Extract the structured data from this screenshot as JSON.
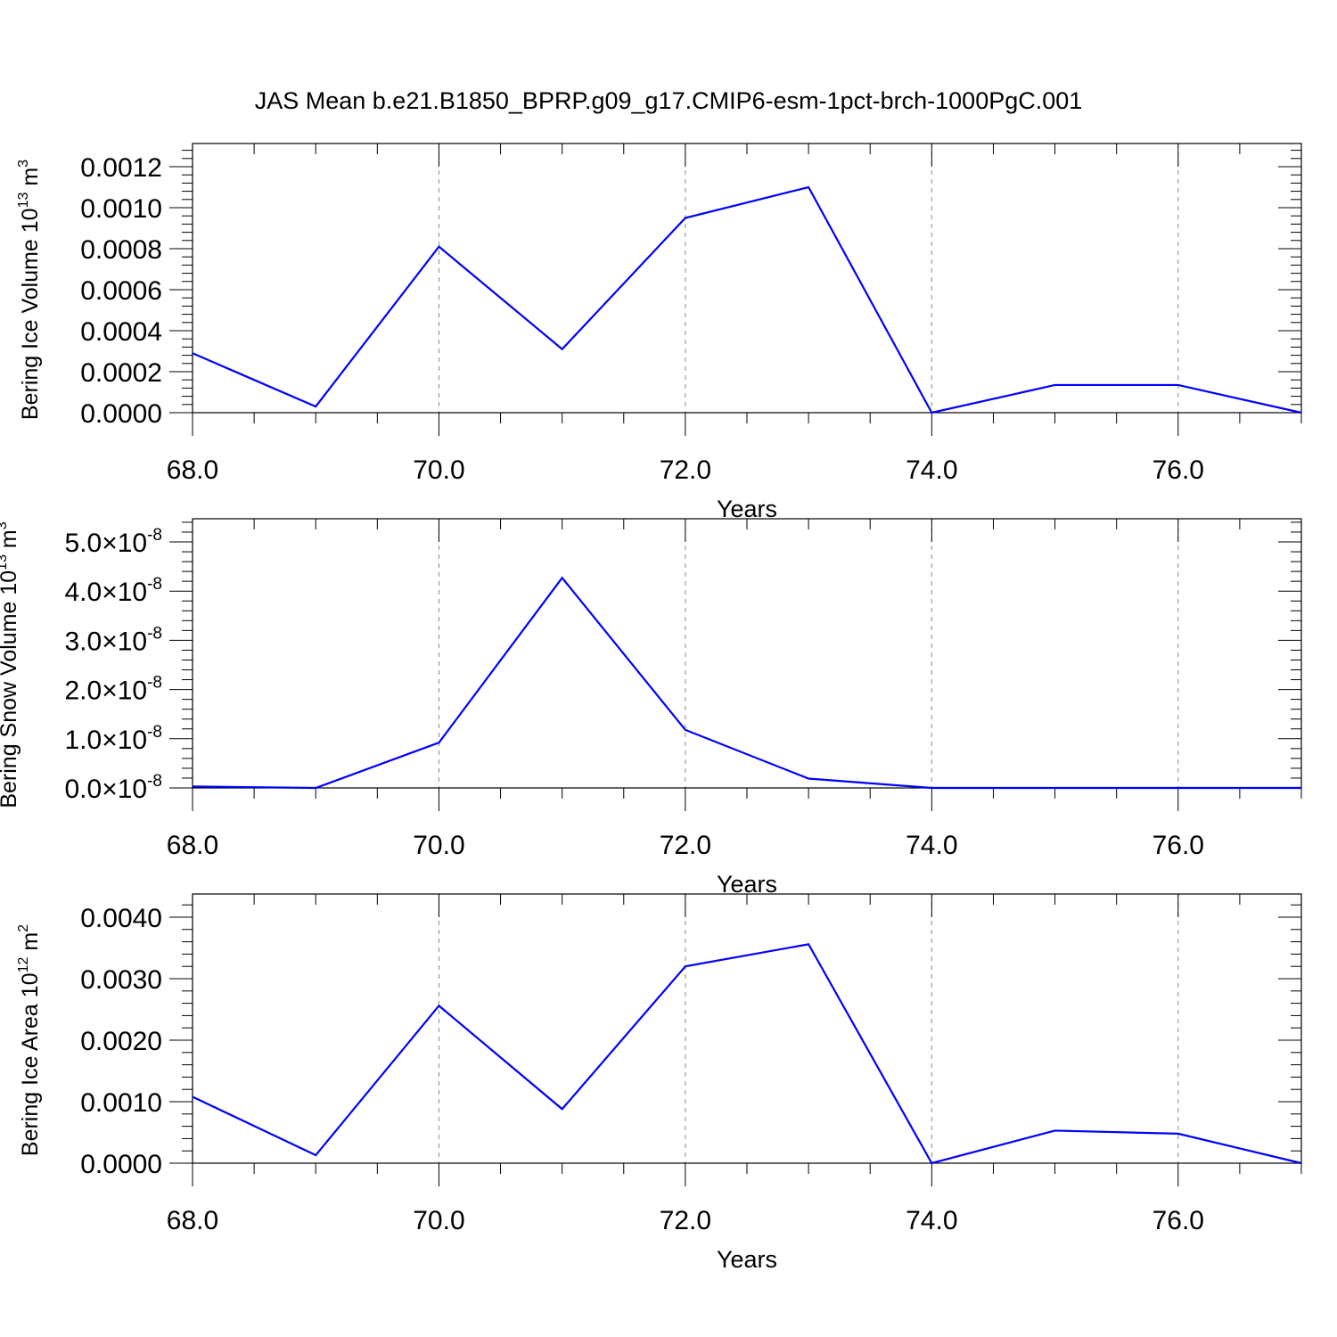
{
  "figure": {
    "title": "JAS Mean b.e21.B1850_BPRP.g09_g17.CMIP6-esm-1pct-brch-1000PgC.001"
  },
  "chart_data": [
    {
      "type": "line",
      "ylabel": "Bering Ice Volume 10",
      "ylabel_sup": "13",
      "ylabel_unit": " m",
      "ylabel_unit_sup": "3",
      "xlabel": "Years",
      "x": [
        68,
        69,
        70,
        71,
        72,
        73,
        74,
        75,
        76,
        77
      ],
      "values": [
        0.00029,
        3e-05,
        0.00081,
        0.00031,
        0.00095,
        0.0011,
        0.0,
        0.000135,
        0.000135,
        0.0
      ],
      "xlim": [
        68,
        77
      ],
      "ylim": [
        0,
        0.0012
      ],
      "xticks": [
        "68.0",
        "70.0",
        "72.0",
        "74.0",
        "76.0"
      ],
      "yticks": [
        "0.0000",
        "0.0002",
        "0.0004",
        "0.0006",
        "0.0008",
        "0.0010",
        "0.0012"
      ],
      "line_color": "#0000ff",
      "grid": "vertical dashed at major x ticks"
    },
    {
      "type": "line",
      "ylabel": "Bering Snow Volume 10",
      "ylabel_sup": "13",
      "ylabel_unit": " m",
      "ylabel_unit_sup": "3",
      "xlabel": "Years",
      "x": [
        68,
        69,
        70,
        71,
        72,
        73,
        74,
        75,
        76,
        77
      ],
      "values": [
        3e-10,
        0.0,
        9.2e-09,
        4.27e-08,
        1.18e-08,
        1.9e-09,
        0.0,
        0.0,
        0.0,
        0.0
      ],
      "xlim": [
        68,
        77
      ],
      "ylim": [
        0,
        5e-08
      ],
      "xticks": [
        "68.0",
        "70.0",
        "72.0",
        "74.0",
        "76.0"
      ],
      "ytick_mantissas": [
        "0.0",
        "1.0",
        "2.0",
        "3.0",
        "4.0",
        "5.0"
      ],
      "ytick_base": "×10",
      "ytick_exp": "-8",
      "line_color": "#0000ff",
      "grid": "vertical dashed at major x ticks"
    },
    {
      "type": "line",
      "ylabel": "Bering Ice Area 10",
      "ylabel_sup": "12",
      "ylabel_unit": " m",
      "ylabel_unit_sup": "2",
      "xlabel": "Years",
      "x": [
        68,
        69,
        70,
        71,
        72,
        73,
        74,
        75,
        76,
        77
      ],
      "values": [
        0.00108,
        0.00013,
        0.00256,
        0.00088,
        0.0032,
        0.00356,
        0.0,
        0.00053,
        0.00048,
        0.0
      ],
      "xlim": [
        68,
        77
      ],
      "ylim": [
        0,
        0.004
      ],
      "xticks": [
        "68.0",
        "70.0",
        "72.0",
        "74.0",
        "76.0"
      ],
      "yticks": [
        "0.0000",
        "0.0010",
        "0.0020",
        "0.0030",
        "0.0040"
      ],
      "line_color": "#0000ff",
      "grid": "vertical dashed at major x ticks"
    }
  ]
}
